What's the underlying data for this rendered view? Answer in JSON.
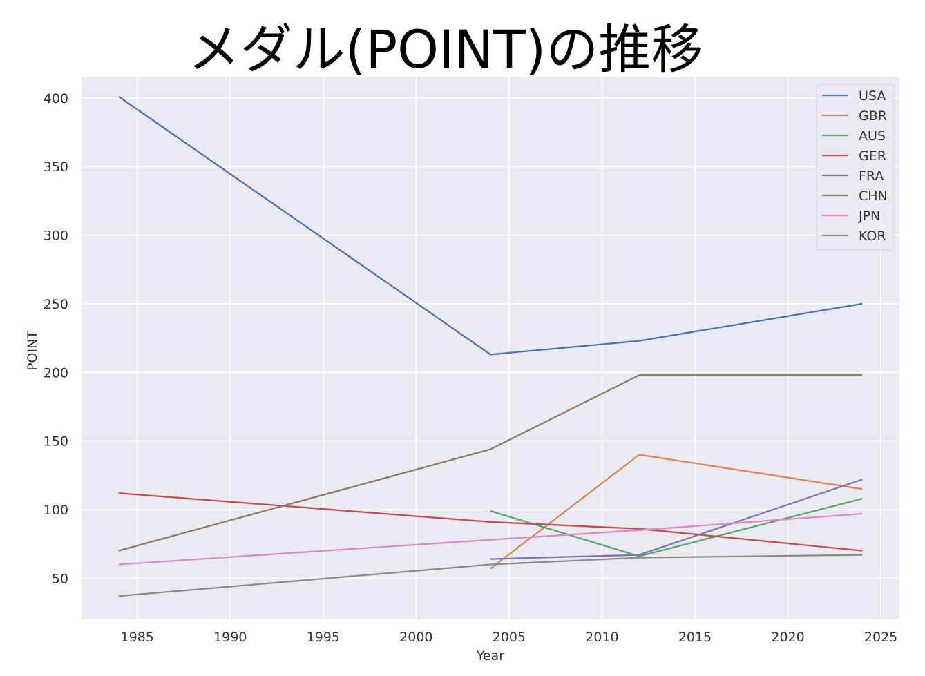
{
  "chart_data": {
    "type": "line",
    "title": "メダル(POINT)の推移",
    "xlabel": "Year",
    "ylabel": "POINT",
    "xlim": [
      1982,
      2026
    ],
    "ylim": [
      20,
      415
    ],
    "xticks": [
      1985,
      1990,
      1995,
      2000,
      2005,
      2010,
      2015,
      2020,
      2025
    ],
    "yticks": [
      50,
      100,
      150,
      200,
      250,
      300,
      350,
      400
    ],
    "grid": true,
    "legend_position": "top-right",
    "background": "#eaeaf2",
    "series": [
      {
        "name": "USA",
        "color": "#4c72b0",
        "points": [
          [
            1984,
            401
          ],
          [
            2004,
            213
          ],
          [
            2012,
            223
          ],
          [
            2024,
            250
          ]
        ]
      },
      {
        "name": "GBR",
        "color": "#dd8452",
        "points": [
          [
            2004,
            57
          ],
          [
            2012,
            140
          ],
          [
            2024,
            115
          ]
        ]
      },
      {
        "name": "AUS",
        "color": "#55a868",
        "points": [
          [
            2004,
            99
          ],
          [
            2012,
            66
          ],
          [
            2024,
            108
          ]
        ]
      },
      {
        "name": "GER",
        "color": "#c44e52",
        "points": [
          [
            1984,
            112
          ],
          [
            2004,
            91
          ],
          [
            2012,
            86
          ],
          [
            2024,
            70
          ]
        ]
      },
      {
        "name": "FRA",
        "color": "#8172b3",
        "points": [
          [
            2004,
            64
          ],
          [
            2012,
            67
          ],
          [
            2024,
            122
          ]
        ]
      },
      {
        "name": "CHN",
        "color": "#937860",
        "points": [
          [
            1984,
            70
          ],
          [
            2004,
            144
          ],
          [
            2012,
            198
          ],
          [
            2024,
            198
          ]
        ]
      },
      {
        "name": "JPN",
        "color": "#da8bc3",
        "points": [
          [
            1984,
            60
          ],
          [
            2004,
            78
          ],
          [
            2012,
            85
          ],
          [
            2024,
            97
          ]
        ]
      },
      {
        "name": "KOR",
        "color": "#8c8c8c",
        "points": [
          [
            1984,
            37
          ],
          [
            2004,
            60
          ],
          [
            2012,
            65
          ],
          [
            2024,
            67
          ]
        ]
      }
    ]
  }
}
